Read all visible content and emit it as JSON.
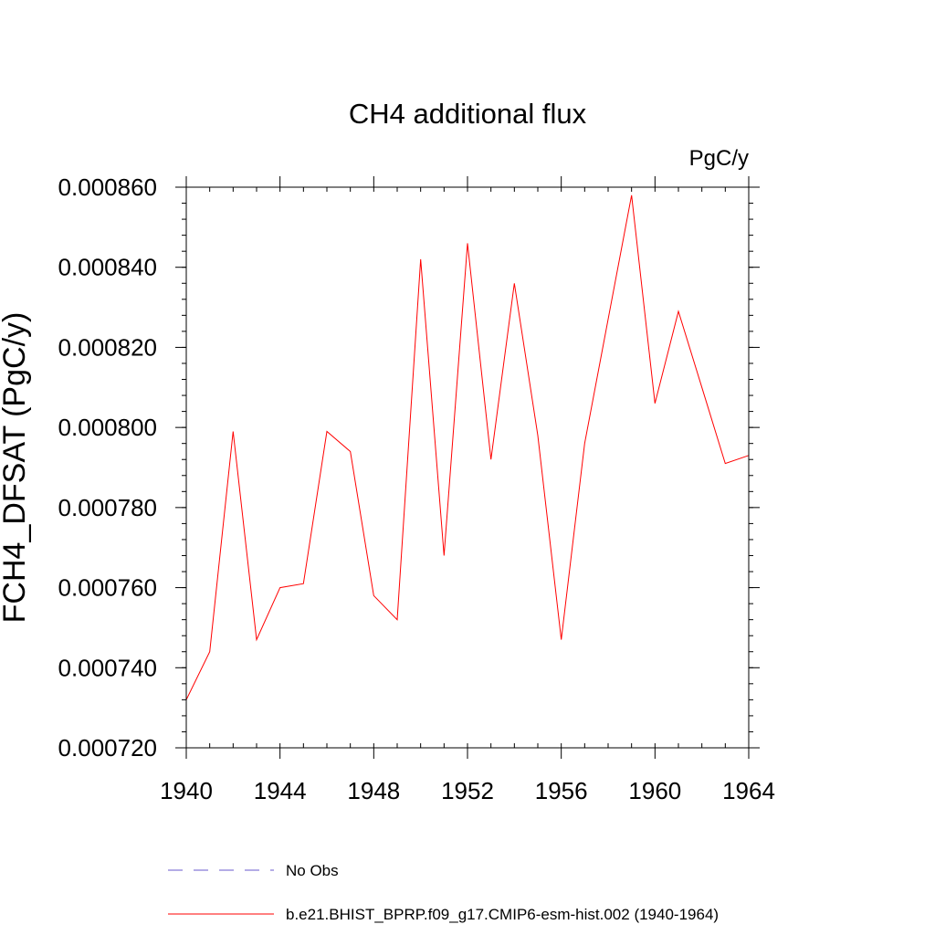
{
  "chart_data": {
    "type": "line",
    "title": "CH4 additional flux",
    "units_label": "PgC/y",
    "ylabel": "FCH4_DFSAT  (PgC/y)",
    "xlabel": "",
    "xlim": [
      1940,
      1964
    ],
    "ylim": [
      0.00072,
      0.00086
    ],
    "x_ticks": [
      1940,
      1944,
      1948,
      1952,
      1956,
      1960,
      1964
    ],
    "x_tick_labels": [
      "1940",
      "1944",
      "1948",
      "1952",
      "1956",
      "1960",
      "1964"
    ],
    "y_ticks": [
      0.00072,
      0.00074,
      0.00076,
      0.00078,
      0.0008,
      0.00082,
      0.00084,
      0.00086
    ],
    "y_tick_labels": [
      "0.000720",
      "0.000740",
      "0.000760",
      "0.000780",
      "0.000800",
      "0.000820",
      "0.000840",
      "0.000860"
    ],
    "x_minor_step": 1,
    "y_minor_step": 4e-06,
    "grid": false,
    "legend_position": "bottom",
    "series": [
      {
        "name": "b.e21.BHIST_BPRP.f09_g17.CMIP6-esm-hist.002 (1940-1964)",
        "color": "#ff0000",
        "style": "solid",
        "x": [
          1940,
          1941,
          1942,
          1943,
          1944,
          1945,
          1946,
          1947,
          1948,
          1949,
          1950,
          1951,
          1952,
          1953,
          1954,
          1955,
          1956,
          1957,
          1958,
          1959,
          1960,
          1961,
          1962,
          1963,
          1964
        ],
        "y": [
          0.000732,
          0.000744,
          0.000799,
          0.000747,
          0.00076,
          0.000761,
          0.000799,
          0.000794,
          0.000758,
          0.000752,
          0.000842,
          0.000768,
          0.000846,
          0.000792,
          0.000836,
          0.000798,
          0.000747,
          0.000796,
          0.000827,
          0.000858,
          0.000806,
          0.000829,
          0.00081,
          0.000791,
          0.000793
        ]
      }
    ],
    "legend": [
      {
        "label": "No Obs",
        "color": "#6a5acd",
        "style": "dashed"
      },
      {
        "label": "b.e21.BHIST_BPRP.f09_g17.CMIP6-esm-hist.002 (1940-1964)",
        "color": "#ff0000",
        "style": "solid"
      }
    ]
  }
}
